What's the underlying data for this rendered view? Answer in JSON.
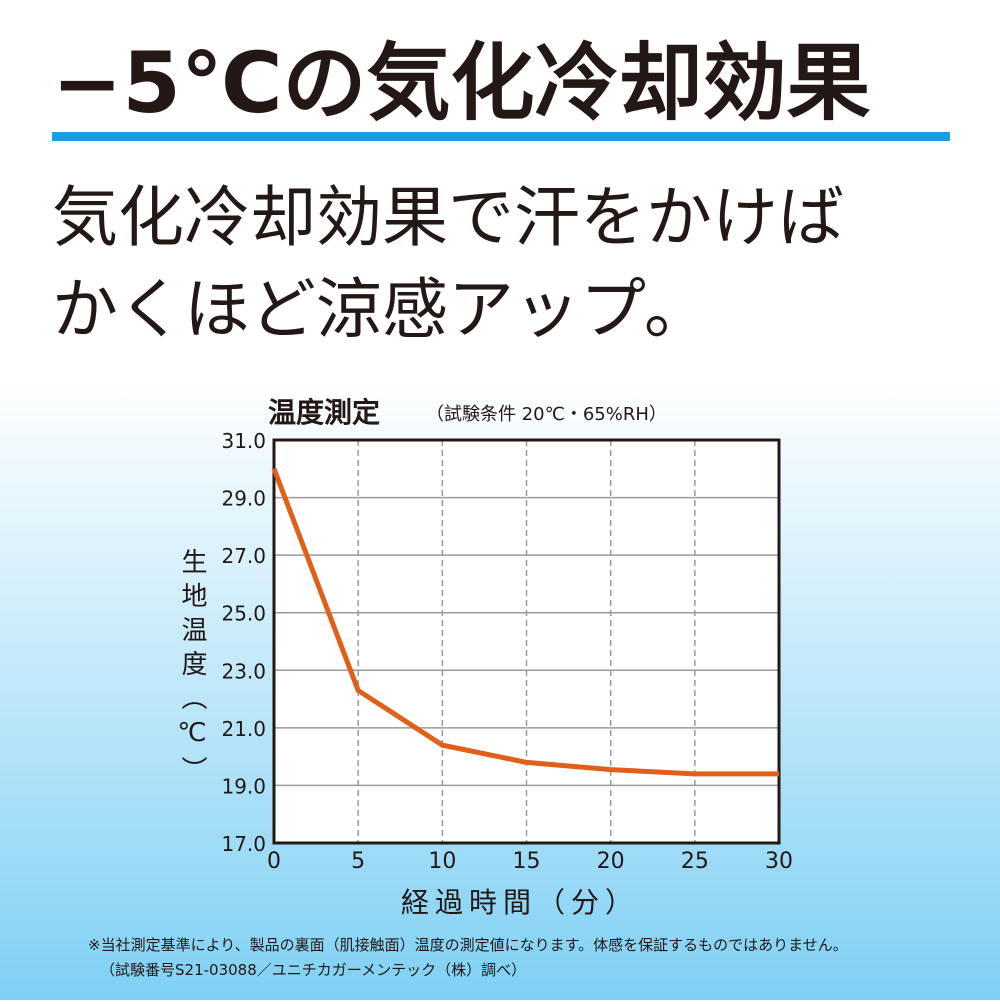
{
  "headline": "−5℃の気化冷却効果",
  "body": [
    "気化冷却効果で汗をかけば",
    "かくほど涼感アップ。"
  ],
  "footnote": [
    "※当社測定基準により、製品の裏面（肌接触面）温度の測定値になります。体感を保証するものではありません。",
    "（試験番号S21-03088／ユニチカガーメンテック（株）調べ）"
  ],
  "chart_data": {
    "type": "line",
    "title": "温度測定",
    "subtitle": "（試験条件 20℃・65%RH）",
    "x_label": "経過時間（分）",
    "y_label": "生地温度（℃）",
    "x": [
      0,
      5,
      10,
      15,
      20,
      25,
      30
    ],
    "values": [
      30.0,
      22.3,
      20.4,
      19.8,
      19.55,
      19.4,
      19.4
    ],
    "color": "#e0601a",
    "xlim": [
      0,
      30
    ],
    "xticks": [
      0,
      5,
      10,
      15,
      20,
      25,
      30
    ],
    "ylim": [
      17,
      31
    ],
    "yticks": [
      {
        "value": 17,
        "label": "17.0"
      },
      {
        "value": 19,
        "label": "19.0"
      },
      {
        "value": 21,
        "label": "21.0"
      },
      {
        "value": 23,
        "label": "23.0"
      },
      {
        "value": 25,
        "label": "25.0"
      },
      {
        "value": 27,
        "label": "27.0"
      },
      {
        "value": 29,
        "label": "29.0"
      },
      {
        "value": 31,
        "label": "31.0"
      }
    ],
    "grid": true
  }
}
